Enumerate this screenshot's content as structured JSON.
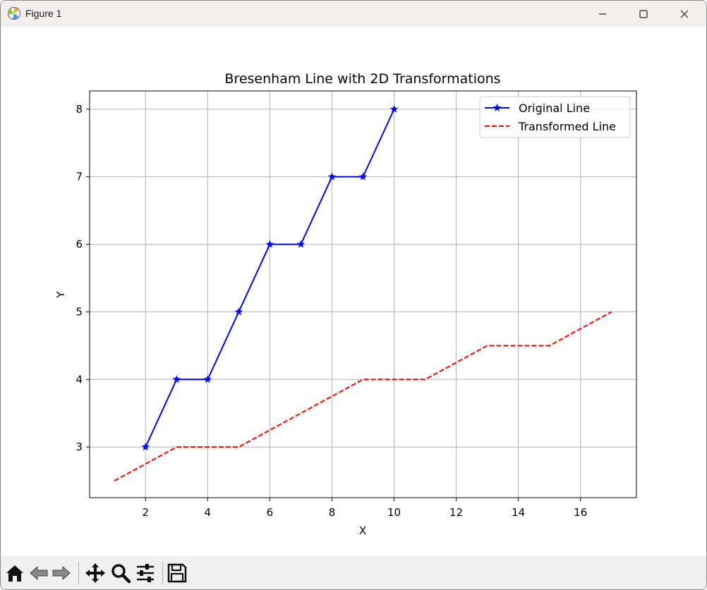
{
  "window": {
    "title": "Figure 1",
    "icons": [
      "matplotlib-logo-icon",
      "minimize-icon",
      "maximize-icon",
      "close-icon"
    ]
  },
  "toolbar": {
    "buttons": [
      "home-icon",
      "back-icon",
      "forward-icon",
      "pan-icon",
      "zoom-icon",
      "configure-subplots-icon",
      "save-icon"
    ]
  },
  "chart_data": {
    "type": "line",
    "title": "Bresenham Line with 2D Transformations",
    "xlabel": "X",
    "ylabel": "Y",
    "xlim": [
      0.2,
      17.8
    ],
    "ylim": [
      2.25,
      8.27
    ],
    "x_ticks": [
      2,
      4,
      6,
      8,
      10,
      12,
      14,
      16
    ],
    "y_ticks": [
      3,
      4,
      5,
      6,
      7,
      8
    ],
    "grid": true,
    "legend_position": "top-right",
    "series": [
      {
        "name": "Original Line",
        "color": "#0000ff",
        "linestyle": "solid",
        "marker": "star",
        "points": [
          [
            2,
            3
          ],
          [
            3,
            4
          ],
          [
            4,
            4
          ],
          [
            5,
            5
          ],
          [
            6,
            6
          ],
          [
            7,
            6
          ],
          [
            8,
            7
          ],
          [
            9,
            7
          ],
          [
            10,
            8
          ]
        ]
      },
      {
        "name": "Transformed Line",
        "color": "#ff0000",
        "linestyle": "dashed",
        "marker": "none",
        "points": [
          [
            1,
            2.5
          ],
          [
            3,
            3
          ],
          [
            5,
            3
          ],
          [
            9,
            4
          ],
          [
            11,
            4
          ],
          [
            13,
            4.5
          ],
          [
            15,
            4.5
          ],
          [
            17,
            5
          ]
        ]
      }
    ]
  }
}
